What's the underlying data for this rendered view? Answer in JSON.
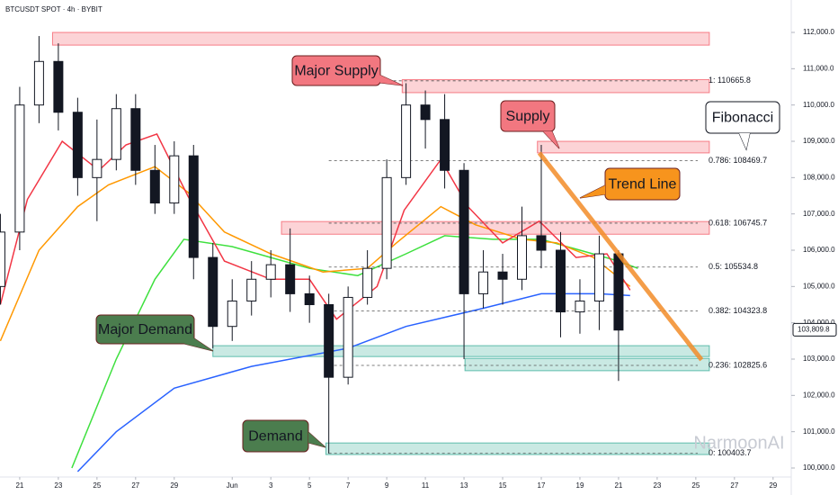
{
  "chart_data": {
    "type": "candlestick",
    "title": "BTCUSDT SPOT · 4h · BYBIT",
    "x": [
      -1,
      0,
      1,
      2,
      3,
      4,
      5,
      6,
      7,
      8,
      9,
      10,
      11,
      12,
      13,
      14,
      15,
      16,
      17,
      18,
      19,
      20,
      21,
      22,
      23,
      24,
      25,
      26,
      27,
      28,
      29,
      30,
      31
    ],
    "open": [
      105000,
      106500,
      110000,
      111200,
      109800,
      108000,
      108500,
      109900,
      108200,
      107300,
      108600,
      105800,
      103900,
      104600,
      105200,
      105600,
      104800,
      104500,
      102500,
      104700,
      105500,
      108000,
      110000,
      109600,
      108200,
      104800,
      105400,
      105200,
      106400,
      106000,
      104300,
      104600,
      105900
    ],
    "high": [
      107000,
      110500,
      111900,
      111700,
      110200,
      109600,
      110300,
      110300,
      108900,
      109000,
      108900,
      106200,
      105200,
      105700,
      106000,
      106600,
      105300,
      104800,
      105000,
      106000,
      108500,
      110600,
      110400,
      110300,
      108400,
      106000,
      105900,
      107200,
      108900,
      106500,
      105200,
      106400,
      106000
    ],
    "low": [
      104500,
      106000,
      109500,
      109300,
      107500,
      106800,
      108200,
      107800,
      107000,
      107000,
      105200,
      103300,
      103500,
      104200,
      104700,
      104300,
      104000,
      100400,
      102300,
      104500,
      105200,
      107800,
      108800,
      107700,
      103000,
      104400,
      104500,
      104900,
      105500,
      103600,
      103700,
      103800,
      102400
    ],
    "close": [
      106500,
      110000,
      111200,
      109800,
      108000,
      108500,
      109900,
      108200,
      107300,
      108600,
      105800,
      103900,
      104600,
      105200,
      105600,
      104800,
      104500,
      102500,
      104700,
      105500,
      108000,
      110000,
      109600,
      108200,
      104800,
      105400,
      105200,
      106400,
      106000,
      104300,
      104600,
      105900,
      103800
    ],
    "up_color": "#089981",
    "down_color": "#f23645",
    "lines": [
      {
        "color": "#2962ff",
        "x": [
          3,
          5,
          8,
          12,
          17,
          20,
          24,
          27,
          30,
          31.6
        ],
        "values": [
          99900,
          101000,
          102200,
          102800,
          103300,
          103900,
          104400,
          104800,
          104800,
          104750
        ]
      },
      {
        "color": "#3ee03e",
        "x": [
          2.7,
          5,
          7,
          8.5,
          11,
          13,
          15,
          17.5,
          20,
          22,
          24.5,
          27,
          29,
          31,
          32
        ],
        "values": [
          100000,
          103000,
          105200,
          106300,
          106100,
          105800,
          105500,
          105300,
          105900,
          106400,
          106300,
          106300,
          106000,
          105700,
          105500
        ]
      },
      {
        "color": "#ff9800",
        "x": [
          -1,
          1,
          3,
          4.6,
          7,
          8.7,
          10.6,
          13,
          15.7,
          18,
          19.5,
          21.8,
          23.6,
          26,
          27.8,
          29.7,
          31.6
        ],
        "values": [
          103500,
          106000,
          107200,
          107800,
          108300,
          107600,
          106500,
          105900,
          105400,
          105500,
          106200,
          107200,
          106700,
          106300,
          106200,
          105800,
          105000
        ]
      },
      {
        "color": "#f23645",
        "x": [
          -1,
          0.4,
          2.2,
          4.1,
          5.5,
          7.1,
          8.7,
          10.6,
          13,
          15,
          16.4,
          18.5,
          19.9,
          21.8,
          23.2,
          25,
          26.9,
          28.8,
          30.4,
          31.6
        ],
        "values": [
          104500,
          107400,
          109000,
          108200,
          108900,
          109200,
          107500,
          105700,
          105200,
          105200,
          104100,
          105000,
          107100,
          108500,
          107200,
          106200,
          106800,
          105800,
          105900,
          104900
        ]
      }
    ],
    "zones": [
      {
        "start": 1.7,
        "end": 35.7,
        "low": 111650,
        "high": 112000,
        "color": "#f23645"
      },
      {
        "start": 19.8,
        "end": 35.7,
        "low": 110340,
        "high": 110700,
        "color": "#f23645"
      },
      {
        "start": 26.8,
        "end": 35.7,
        "low": 108680,
        "high": 109000,
        "color": "#f23645"
      },
      {
        "start": 13.55,
        "end": 35.7,
        "low": 106440,
        "high": 106790,
        "color": "#f23645"
      },
      {
        "start": 10,
        "end": 35.7,
        "low": 103070,
        "high": 103370,
        "color": "#089981"
      },
      {
        "start": 23.05,
        "end": 35.7,
        "low": 102680,
        "high": 103020,
        "color": "#089981"
      },
      {
        "start": 15.85,
        "end": 35.7,
        "low": 100370,
        "high": 100690,
        "color": "#089981"
      }
    ],
    "fib_x": [
      16,
      35.1
    ],
    "fib_levels": [
      {
        "label": "1: 110665.8",
        "value": 110665.8
      },
      {
        "label": "0.786: 108469.7",
        "value": 108469.7
      },
      {
        "label": "0.618: 106745.7",
        "value": 106745.7
      },
      {
        "label": "0.5: 105534.8",
        "value": 105534.8
      },
      {
        "label": "0.382: 104323.8",
        "value": 104323.8
      },
      {
        "label": "0.236: 102825.6",
        "value": 102825.6
      },
      {
        "label": "0: 100403.7",
        "value": 100403.7
      }
    ],
    "trend_line": {
      "x": [
        26.9,
        35.3
      ],
      "values": [
        108680,
        102980
      ],
      "color": "#f28c28"
    },
    "annotations": [
      {
        "text": "Major Supply",
        "color": "#f27780"
      },
      {
        "text": "Supply",
        "color": "#f27780"
      },
      {
        "text": "Trend Line",
        "color": "#f7941d"
      },
      {
        "text": "Fibonacci",
        "color": "#ffffff"
      },
      {
        "text": "Major Demand",
        "color": "#4b7d4e"
      },
      {
        "text": "Demand",
        "color": "#4b7d4e"
      }
    ],
    "watermark": "NarmoonAI",
    "last_price": {
      "value": 103809.8,
      "label": "103,809.8"
    },
    "xlim": [
      -1.02,
      39.94
    ],
    "ylim": [
      99752,
      112893
    ],
    "xticks": [
      {
        "value": 0,
        "label": "21"
      },
      {
        "value": 2,
        "label": "23"
      },
      {
        "value": 4,
        "label": "25"
      },
      {
        "value": 6,
        "label": "27"
      },
      {
        "value": 8,
        "label": "29"
      },
      {
        "value": 11,
        "label": "Jun"
      },
      {
        "value": 13,
        "label": "3"
      },
      {
        "value": 15,
        "label": "5"
      },
      {
        "value": 17,
        "label": "7"
      },
      {
        "value": 19,
        "label": "9"
      },
      {
        "value": 21,
        "label": "11"
      },
      {
        "value": 23,
        "label": "13"
      },
      {
        "value": 25,
        "label": "15"
      },
      {
        "value": 27,
        "label": "17"
      },
      {
        "value": 29,
        "label": "19"
      },
      {
        "value": 31,
        "label": "21"
      },
      {
        "value": 33,
        "label": "23"
      },
      {
        "value": 35,
        "label": "25"
      },
      {
        "value": 37,
        "label": "27"
      },
      {
        "value": 39,
        "label": "29"
      }
    ],
    "yticks": [
      {
        "value": 100000,
        "label": "100,000.0"
      },
      {
        "value": 101000,
        "label": "101,000.0"
      },
      {
        "value": 102000,
        "label": "102,000.0"
      },
      {
        "value": 103000,
        "label": "103,000.0"
      },
      {
        "value": 104000,
        "label": "104,000.0"
      },
      {
        "value": 105000,
        "label": "105,000.0"
      },
      {
        "value": 106000,
        "label": "106,000.0"
      },
      {
        "value": 107000,
        "label": "107,000.0"
      },
      {
        "value": 108000,
        "label": "108,000.0"
      },
      {
        "value": 109000,
        "label": "109,000.0"
      },
      {
        "value": 110000,
        "label": "110,000.0"
      },
      {
        "value": 111000,
        "label": "111,000.0"
      },
      {
        "value": 112000,
        "label": "112,000.0"
      }
    ],
    "grid": false
  }
}
